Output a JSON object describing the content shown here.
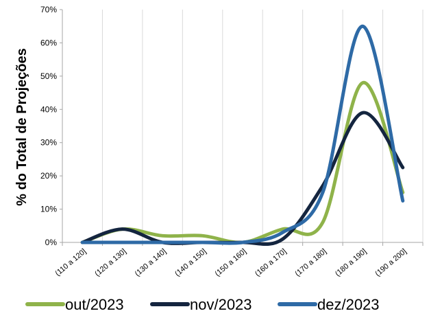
{
  "chart_data": {
    "type": "line",
    "smooth": true,
    "title": "",
    "xlabel": "",
    "ylabel": "% do Total de Projeções",
    "categories": [
      "(110 a 120]",
      "(120 a 130]",
      "(130 a 140]",
      "(140 a 150]",
      "(150 a 160]",
      "(160 a 170]",
      "(170 a 180]",
      "(180 a 190]",
      "(190 a 200]"
    ],
    "ylim": [
      0,
      70
    ],
    "yticks": [
      "0%",
      "10%",
      "20%",
      "30%",
      "40%",
      "50%",
      "60%",
      "70%"
    ],
    "grid": "vertical",
    "legend_position": "bottom",
    "series": [
      {
        "name": "out/2023",
        "color": "#8fb34a",
        "values": [
          0,
          4,
          2,
          2,
          0,
          4,
          6,
          48,
          15
        ]
      },
      {
        "name": "nov/2023",
        "color": "#14253f",
        "values": [
          0,
          4,
          0,
          0,
          0,
          1,
          17,
          39,
          22.5
        ]
      },
      {
        "name": "dez/2023",
        "color": "#2e6aa6",
        "values": [
          0,
          0,
          0,
          0,
          0,
          3,
          15,
          65,
          12.5
        ]
      }
    ]
  }
}
